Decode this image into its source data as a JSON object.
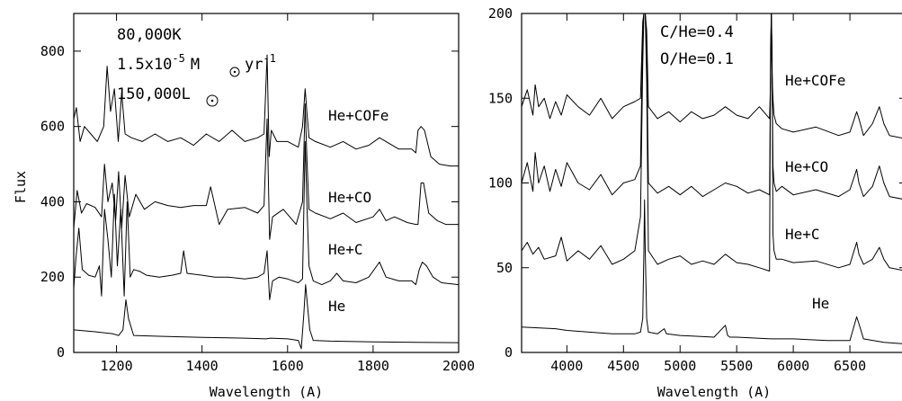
{
  "chart_data": [
    {
      "type": "line",
      "xlabel": "Wavelength (A)",
      "ylabel": "Flux",
      "xlim": [
        1100,
        2000
      ],
      "ylim": [
        0,
        900
      ],
      "xticks": [
        1200,
        1400,
        1600,
        1800,
        2000
      ],
      "yticks": [
        0,
        200,
        400,
        600,
        800
      ],
      "annotations": [
        "80,000K",
        "1.5x10",
        "-5",
        "M",
        "yr",
        "-1",
        "150,000L"
      ],
      "series": [
        {
          "name": "He",
          "x": [
            1100,
            1150,
            1190,
            1205,
            1215,
            1222,
            1228,
            1240,
            1300,
            1400,
            1500,
            1550,
            1560,
            1600,
            1625,
            1632,
            1638,
            1642,
            1647,
            1652,
            1660,
            1700,
            1800,
            1900,
            2000
          ],
          "y": [
            60,
            55,
            50,
            45,
            60,
            140,
            90,
            45,
            43,
            40,
            38,
            36,
            38,
            36,
            32,
            10,
            100,
            180,
            120,
            60,
            32,
            30,
            28,
            27,
            26
          ]
        },
        {
          "name": "He+C",
          "x": [
            1100,
            1105,
            1112,
            1120,
            1135,
            1150,
            1160,
            1165,
            1172,
            1180,
            1188,
            1195,
            1202,
            1210,
            1218,
            1225,
            1232,
            1240,
            1255,
            1270,
            1300,
            1330,
            1350,
            1357,
            1365,
            1400,
            1430,
            1460,
            1500,
            1530,
            1545,
            1552,
            1558,
            1565,
            1580,
            1600,
            1625,
            1635,
            1641,
            1645,
            1650,
            1660,
            1680,
            1700,
            1715,
            1730,
            1760,
            1790,
            1815,
            1830,
            1860,
            1890,
            1900,
            1908,
            1915,
            1925,
            1940,
            1960,
            2000
          ],
          "y": [
            170,
            250,
            330,
            220,
            205,
            200,
            230,
            150,
            380,
            300,
            200,
            420,
            230,
            380,
            150,
            400,
            200,
            220,
            215,
            205,
            200,
            205,
            210,
            270,
            210,
            205,
            200,
            200,
            195,
            200,
            210,
            270,
            140,
            190,
            200,
            195,
            185,
            195,
            560,
            400,
            230,
            190,
            180,
            190,
            210,
            190,
            185,
            200,
            240,
            200,
            190,
            190,
            180,
            220,
            240,
            230,
            200,
            185,
            180
          ]
        },
        {
          "name": "He+CO",
          "x": [
            1100,
            1108,
            1118,
            1130,
            1150,
            1165,
            1172,
            1180,
            1190,
            1198,
            1205,
            1212,
            1220,
            1230,
            1245,
            1265,
            1290,
            1320,
            1350,
            1380,
            1410,
            1420,
            1440,
            1460,
            1500,
            1530,
            1545,
            1552,
            1558,
            1565,
            1590,
            1620,
            1635,
            1641,
            1645,
            1650,
            1665,
            1700,
            1730,
            1760,
            1800,
            1815,
            1830,
            1850,
            1880,
            1900,
            1905,
            1912,
            1918,
            1930,
            1950,
            1970,
            2000
          ],
          "y": [
            330,
            430,
            370,
            395,
            385,
            360,
            500,
            400,
            450,
            350,
            480,
            330,
            470,
            360,
            420,
            380,
            400,
            390,
            385,
            390,
            390,
            440,
            340,
            380,
            385,
            370,
            390,
            620,
            300,
            360,
            380,
            340,
            400,
            660,
            520,
            380,
            370,
            355,
            370,
            345,
            360,
            380,
            350,
            360,
            345,
            340,
            340,
            450,
            450,
            370,
            350,
            340,
            340
          ]
        },
        {
          "name": "He+COFe",
          "x": [
            1100,
            1106,
            1115,
            1125,
            1140,
            1155,
            1170,
            1178,
            1186,
            1195,
            1204,
            1212,
            1220,
            1235,
            1260,
            1290,
            1320,
            1350,
            1380,
            1410,
            1440,
            1470,
            1500,
            1530,
            1545,
            1552,
            1557,
            1562,
            1575,
            1600,
            1625,
            1635,
            1641,
            1645,
            1650,
            1665,
            1700,
            1730,
            1760,
            1790,
            1815,
            1830,
            1860,
            1890,
            1900,
            1905,
            1912,
            1920,
            1935,
            1955,
            1980,
            2000
          ],
          "y": [
            620,
            650,
            560,
            600,
            580,
            560,
            600,
            760,
            640,
            700,
            560,
            690,
            580,
            570,
            560,
            580,
            560,
            570,
            550,
            580,
            560,
            590,
            560,
            570,
            580,
            790,
            520,
            590,
            560,
            560,
            545,
            600,
            700,
            640,
            570,
            560,
            545,
            560,
            540,
            550,
            570,
            560,
            540,
            540,
            530,
            590,
            600,
            590,
            520,
            500,
            495,
            495
          ]
        }
      ]
    },
    {
      "type": "line",
      "xlabel": "Wavelength (A)",
      "ylabel": "",
      "xlim": [
        3600,
        7000
      ],
      "ylim": [
        0,
        200
      ],
      "xticks": [
        4000,
        4500,
        5000,
        5500,
        6000,
        6500
      ],
      "yticks": [
        0,
        50,
        100,
        150,
        200
      ],
      "annotations": [
        "C/He=0.4",
        "O/He=0.1"
      ],
      "series": [
        {
          "name": "He",
          "x": [
            3600,
            3900,
            4000,
            4200,
            4400,
            4600,
            4650,
            4670,
            4680,
            4686,
            4692,
            4705,
            4720,
            4800,
            4860,
            4880,
            5000,
            5300,
            5400,
            5420,
            5440,
            5500,
            5800,
            6000,
            6300,
            6500,
            6560,
            6580,
            6620,
            6800,
            7000
          ],
          "y": [
            15,
            14,
            13,
            12,
            11,
            11,
            12,
            20,
            60,
            90,
            60,
            20,
            12,
            11,
            14,
            11,
            10,
            9,
            16,
            10,
            9,
            9,
            8,
            8,
            7,
            7,
            21,
            17,
            8,
            6,
            5
          ]
        },
        {
          "name": "He+C",
          "x": [
            3600,
            3650,
            3700,
            3750,
            3800,
            3900,
            3950,
            4000,
            4100,
            4200,
            4300,
            4400,
            4500,
            4600,
            4650,
            4670,
            4680,
            4686,
            4692,
            4705,
            4720,
            4800,
            4900,
            5000,
            5100,
            5200,
            5300,
            5400,
            5500,
            5600,
            5700,
            5790,
            5800,
            5806,
            5812,
            5820,
            5830,
            5850,
            5900,
            6000,
            6200,
            6400,
            6500,
            6560,
            6580,
            6620,
            6700,
            6760,
            6800,
            6850,
            7000
          ],
          "y": [
            60,
            65,
            58,
            62,
            55,
            57,
            68,
            54,
            60,
            55,
            63,
            52,
            55,
            60,
            80,
            170,
            200,
            205,
            200,
            160,
            60,
            52,
            55,
            57,
            52,
            54,
            52,
            58,
            53,
            52,
            50,
            48,
            180,
            210,
            180,
            70,
            60,
            55,
            55,
            53,
            54,
            50,
            52,
            65,
            58,
            52,
            55,
            62,
            55,
            50,
            48
          ]
        },
        {
          "name": "He+CO",
          "x": [
            3600,
            3650,
            3700,
            3720,
            3750,
            3800,
            3850,
            3900,
            3950,
            4000,
            4100,
            4200,
            4300,
            4400,
            4500,
            4600,
            4650,
            4670,
            4680,
            4686,
            4692,
            4705,
            4720,
            4800,
            4900,
            5000,
            5100,
            5200,
            5300,
            5400,
            5500,
            5600,
            5700,
            5790,
            5800,
            5806,
            5812,
            5820,
            5830,
            5850,
            5900,
            6000,
            6200,
            6400,
            6500,
            6560,
            6580,
            6620,
            6700,
            6760,
            6800,
            6850,
            7000
          ],
          "y": [
            100,
            112,
            95,
            118,
            100,
            110,
            95,
            108,
            98,
            112,
            100,
            96,
            105,
            93,
            100,
            102,
            110,
            190,
            205,
            210,
            205,
            180,
            100,
            94,
            98,
            93,
            98,
            92,
            96,
            100,
            98,
            94,
            96,
            93,
            170,
            205,
            170,
            110,
            100,
            95,
            98,
            93,
            96,
            92,
            96,
            108,
            100,
            92,
            98,
            110,
            100,
            92,
            90
          ]
        },
        {
          "name": "He+COFe",
          "x": [
            3600,
            3650,
            3700,
            3720,
            3750,
            3800,
            3850,
            3900,
            3950,
            4000,
            4100,
            4200,
            4300,
            4400,
            4500,
            4600,
            4650,
            4670,
            4680,
            4686,
            4692,
            4705,
            4720,
            4800,
            4900,
            5000,
            5100,
            5200,
            5300,
            5400,
            5500,
            5600,
            5700,
            5790,
            5800,
            5806,
            5812,
            5820,
            5830,
            5850,
            5900,
            6000,
            6200,
            6400,
            6500,
            6560,
            6580,
            6620,
            6700,
            6760,
            6800,
            6850,
            7000
          ],
          "y": [
            145,
            155,
            140,
            158,
            145,
            150,
            138,
            148,
            140,
            152,
            145,
            140,
            150,
            138,
            145,
            148,
            150,
            195,
            205,
            210,
            205,
            190,
            145,
            138,
            142,
            136,
            142,
            138,
            140,
            145,
            140,
            138,
            145,
            138,
            160,
            205,
            165,
            150,
            140,
            135,
            132,
            130,
            133,
            128,
            130,
            142,
            138,
            128,
            135,
            145,
            135,
            128,
            126
          ]
        }
      ]
    }
  ],
  "left_panel": {
    "series_labels": [
      "He+COFe",
      "He+CO",
      "He+C",
      "He"
    ]
  },
  "right_panel": {
    "series_labels": [
      "He+COFe",
      "He+CO",
      "He+C",
      "He"
    ]
  }
}
